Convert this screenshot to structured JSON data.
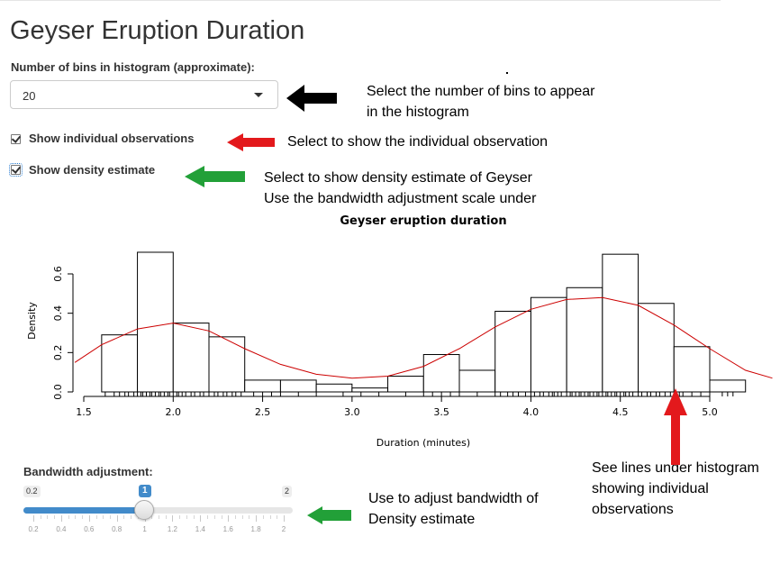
{
  "page": {
    "title": "Geyser Eruption Duration"
  },
  "bins_control": {
    "label": "Number of bins in histogram (approximate):",
    "selected": "20"
  },
  "checkboxes": {
    "individual_obs": {
      "label": "Show individual observations",
      "checked": true
    },
    "density": {
      "label": "Show density estimate",
      "checked": true
    }
  },
  "annotations": {
    "bins_line1": "Select the number of bins to appear",
    "bins_line2": "in the histogram",
    "obs": "Select to show the individual observation",
    "density_line1": "Select to show density estimate of Geyser",
    "density_line2": "Use the bandwidth adjustment scale under",
    "rug_line1": "See lines under histogram",
    "rug_line2": "showing individual",
    "rug_line3": "observations",
    "bw_line1": "Use to adjust bandwidth of",
    "bw_line2": "Density estimate"
  },
  "arrow_colors": {
    "black": "#000000",
    "red": "#e3191c",
    "green": "#22a038"
  },
  "chart_data": {
    "type": "bar",
    "title": "Geyser eruption duration",
    "xlabel": "Duration (minutes)",
    "ylabel": "Density",
    "xlim": [
      1.5,
      5.3
    ],
    "ylim": [
      0,
      0.7
    ],
    "x_ticks": [
      "1.5",
      "2.0",
      "2.5",
      "3.0",
      "3.5",
      "4.0",
      "4.5",
      "5.0"
    ],
    "y_ticks": [
      "0.0",
      "0.2",
      "0.4",
      "0.6"
    ],
    "bin_width": 0.2,
    "bins": [
      {
        "start": 1.6,
        "end": 1.8,
        "density": 0.29
      },
      {
        "start": 1.8,
        "end": 2.0,
        "density": 0.71
      },
      {
        "start": 2.0,
        "end": 2.2,
        "density": 0.35
      },
      {
        "start": 2.2,
        "end": 2.4,
        "density": 0.28
      },
      {
        "start": 2.4,
        "end": 2.6,
        "density": 0.06
      },
      {
        "start": 2.6,
        "end": 2.8,
        "density": 0.06
      },
      {
        "start": 2.8,
        "end": 3.0,
        "density": 0.04
      },
      {
        "start": 3.0,
        "end": 3.2,
        "density": 0.02
      },
      {
        "start": 3.2,
        "end": 3.4,
        "density": 0.08
      },
      {
        "start": 3.4,
        "end": 3.6,
        "density": 0.19
      },
      {
        "start": 3.6,
        "end": 3.8,
        "density": 0.11
      },
      {
        "start": 3.8,
        "end": 4.0,
        "density": 0.41
      },
      {
        "start": 4.0,
        "end": 4.2,
        "density": 0.48
      },
      {
        "start": 4.2,
        "end": 4.4,
        "density": 0.53
      },
      {
        "start": 4.4,
        "end": 4.6,
        "density": 0.7
      },
      {
        "start": 4.6,
        "end": 4.8,
        "density": 0.45
      },
      {
        "start": 4.8,
        "end": 5.0,
        "density": 0.23
      },
      {
        "start": 5.0,
        "end": 5.2,
        "density": 0.06
      }
    ],
    "density_curve": {
      "color": "#cc0000",
      "x": [
        1.45,
        1.6,
        1.8,
        2.0,
        2.2,
        2.4,
        2.6,
        2.8,
        3.0,
        3.2,
        3.4,
        3.6,
        3.8,
        4.0,
        4.2,
        4.4,
        4.6,
        4.8,
        5.0,
        5.2,
        5.35
      ],
      "y": [
        0.15,
        0.24,
        0.32,
        0.35,
        0.31,
        0.22,
        0.14,
        0.09,
        0.07,
        0.08,
        0.13,
        0.22,
        0.33,
        0.42,
        0.47,
        0.48,
        0.44,
        0.34,
        0.22,
        0.11,
        0.07
      ]
    },
    "rug": [
      1.62,
      1.67,
      1.7,
      1.73,
      1.75,
      1.78,
      1.8,
      1.82,
      1.83,
      1.85,
      1.87,
      1.88,
      1.9,
      1.92,
      1.93,
      1.95,
      1.97,
      1.98,
      2.0,
      2.02,
      2.03,
      2.05,
      2.07,
      2.1,
      2.12,
      2.15,
      2.17,
      2.2,
      2.23,
      2.25,
      2.28,
      2.3,
      2.33,
      2.35,
      2.38,
      2.45,
      2.5,
      2.55,
      2.6,
      2.7,
      2.8,
      2.95,
      3.05,
      3.15,
      3.3,
      3.4,
      3.45,
      3.5,
      3.55,
      3.6,
      3.7,
      3.8,
      3.83,
      3.87,
      3.9,
      3.93,
      3.97,
      4.0,
      4.02,
      4.05,
      4.07,
      4.1,
      4.12,
      4.13,
      4.15,
      4.17,
      4.2,
      4.22,
      4.23,
      4.25,
      4.27,
      4.28,
      4.3,
      4.32,
      4.33,
      4.35,
      4.37,
      4.38,
      4.4,
      4.42,
      4.43,
      4.45,
      4.47,
      4.48,
      4.5,
      4.52,
      4.53,
      4.55,
      4.57,
      4.6,
      4.62,
      4.65,
      4.67,
      4.7,
      4.72,
      4.75,
      4.78,
      4.8,
      4.83,
      4.85,
      4.9,
      4.95,
      5.0,
      5.07,
      5.1,
      5.13
    ]
  },
  "bandwidth_slider": {
    "label": "Bandwidth adjustment:",
    "min_label": "0.2",
    "max_label": "2",
    "value_label": "1",
    "value": 1,
    "min": 0.2,
    "max": 2,
    "tick_labels": [
      "0.2",
      "0.4",
      "0.6",
      "0.8",
      "1",
      "1.2",
      "1.4",
      "1.6",
      "1.8",
      "2"
    ]
  }
}
